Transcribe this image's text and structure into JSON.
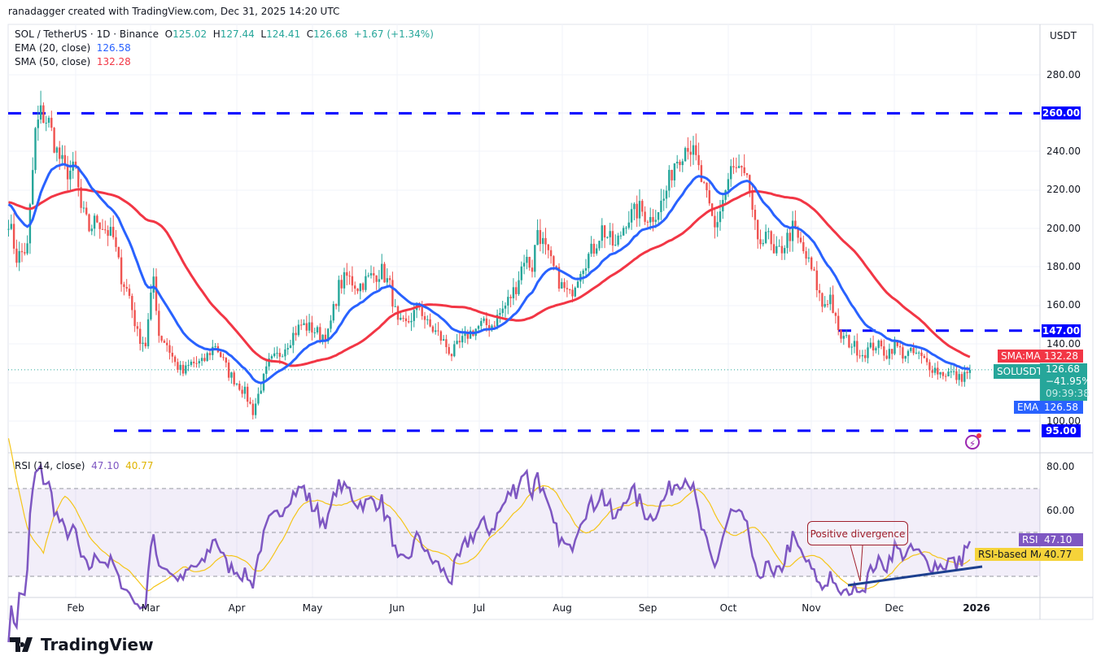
{
  "header": {
    "credit": "ranadagger created with TradingView.com, Dec 31, 2025 14:20 UTC"
  },
  "legend": {
    "symbol": "SOL / TetherUS · 1D · Binance",
    "o_label": "O",
    "o": "125.02",
    "h_label": "H",
    "h": "127.44",
    "l_label": "L",
    "l": "124.41",
    "c_label": "C",
    "c": "126.68",
    "change": "+1.67 (+1.34%)",
    "ema_label": "EMA (20, close)",
    "ema_value": "126.58",
    "sma_label": "SMA (50, close)",
    "sma_value": "132.28",
    "rsi_label": "RSI (14, close)",
    "rsi_value": "47.10",
    "rsi_ma_value": "40.77"
  },
  "price_axis": {
    "currency": "USDT",
    "ticks": [
      "280.00",
      "240.00",
      "220.00",
      "200.00",
      "180.00",
      "160.00",
      "140.00",
      "100.00"
    ],
    "levels": [
      "260.00",
      "147.00",
      "95.00"
    ],
    "sma_tag": "SMA:MA",
    "sma_val": "132.28",
    "sym_tag": "SOLUSDT",
    "last": "126.68",
    "pct": "−41.95%",
    "countdown": "09:39:38",
    "ema_tag": "EMA",
    "ema_val": "126.58"
  },
  "rsi_axis": {
    "ticks": [
      "80.00",
      "60.00"
    ],
    "rsi_tag": "RSI",
    "rsi_val": "47.10",
    "ma_tag": "RSI-based MA",
    "ma_val": "40.77"
  },
  "time_axis": [
    "Feb",
    "Mar",
    "Apr",
    "May",
    "Jun",
    "Jul",
    "Aug",
    "Sep",
    "Oct",
    "Nov",
    "Dec",
    "2026"
  ],
  "annotation": "Positive divergence",
  "logo": "TradingView",
  "colors": {
    "up": "#26a69a",
    "down": "#ef5350",
    "ema": "#2962ff",
    "sma": "#f23645",
    "rsi": "#7e57c2",
    "rsi_ma": "#f5c518",
    "level": "#0000ff",
    "trend": "#1c3f8f"
  },
  "chart_data": {
    "type": "candlestick",
    "title": "SOL / TetherUS · 1D · Binance",
    "ylim": [
      90,
      295
    ],
    "levels": [
      260,
      147,
      95
    ],
    "rsi_levels": [
      70,
      50,
      30
    ],
    "close_keypoints_day_of_2025": [
      [
        6,
        205
      ],
      [
        9,
        185
      ],
      [
        13,
        190
      ],
      [
        16,
        250
      ],
      [
        18,
        260
      ],
      [
        21,
        255
      ],
      [
        24,
        240
      ],
      [
        27,
        230
      ],
      [
        31,
        230
      ],
      [
        33,
        210
      ],
      [
        36,
        200
      ],
      [
        39,
        205
      ],
      [
        42,
        200
      ],
      [
        45,
        195
      ],
      [
        48,
        175
      ],
      [
        51,
        165
      ],
      [
        54,
        145
      ],
      [
        57,
        140
      ],
      [
        60,
        175
      ],
      [
        62,
        145
      ],
      [
        65,
        140
      ],
      [
        68,
        130
      ],
      [
        71,
        125
      ],
      [
        74,
        130
      ],
      [
        78,
        130
      ],
      [
        83,
        140
      ],
      [
        88,
        125
      ],
      [
        91,
        120
      ],
      [
        94,
        115
      ],
      [
        97,
        105
      ],
      [
        100,
        118
      ],
      [
        103,
        130
      ],
      [
        107,
        135
      ],
      [
        112,
        145
      ],
      [
        115,
        150
      ],
      [
        119,
        148
      ],
      [
        122,
        145
      ],
      [
        125,
        145
      ],
      [
        129,
        170
      ],
      [
        132,
        175
      ],
      [
        136,
        170
      ],
      [
        141,
        175
      ],
      [
        145,
        178
      ],
      [
        148,
        170
      ],
      [
        151,
        150
      ],
      [
        154,
        150
      ],
      [
        159,
        160
      ],
      [
        162,
        150
      ],
      [
        166,
        145
      ],
      [
        171,
        135
      ],
      [
        174,
        140
      ],
      [
        177,
        145
      ],
      [
        182,
        150
      ],
      [
        186,
        150
      ],
      [
        191,
        160
      ],
      [
        195,
        170
      ],
      [
        198,
        185
      ],
      [
        201,
        180
      ],
      [
        203,
        200
      ],
      [
        207,
        185
      ],
      [
        212,
        170
      ],
      [
        215,
        165
      ],
      [
        219,
        180
      ],
      [
        224,
        190
      ],
      [
        227,
        200
      ],
      [
        232,
        190
      ],
      [
        236,
        205
      ],
      [
        241,
        210
      ],
      [
        245,
        205
      ],
      [
        250,
        215
      ],
      [
        254,
        235
      ],
      [
        259,
        245
      ],
      [
        262,
        235
      ],
      [
        266,
        215
      ],
      [
        269,
        200
      ],
      [
        272,
        215
      ],
      [
        275,
        230
      ],
      [
        278,
        230
      ],
      [
        282,
        220
      ],
      [
        285,
        190
      ],
      [
        288,
        200
      ],
      [
        291,
        185
      ],
      [
        294,
        190
      ],
      [
        298,
        200
      ],
      [
        303,
        185
      ],
      [
        306,
        175
      ],
      [
        309,
        160
      ],
      [
        312,
        165
      ],
      [
        315,
        145
      ],
      [
        320,
        140
      ],
      [
        324,
        135
      ],
      [
        329,
        140
      ],
      [
        333,
        135
      ],
      [
        336,
        140
      ],
      [
        339,
        135
      ],
      [
        344,
        135
      ],
      [
        348,
        130
      ],
      [
        353,
        125
      ],
      [
        357,
        125
      ],
      [
        360,
        122
      ],
      [
        364,
        126.68
      ]
    ]
  }
}
